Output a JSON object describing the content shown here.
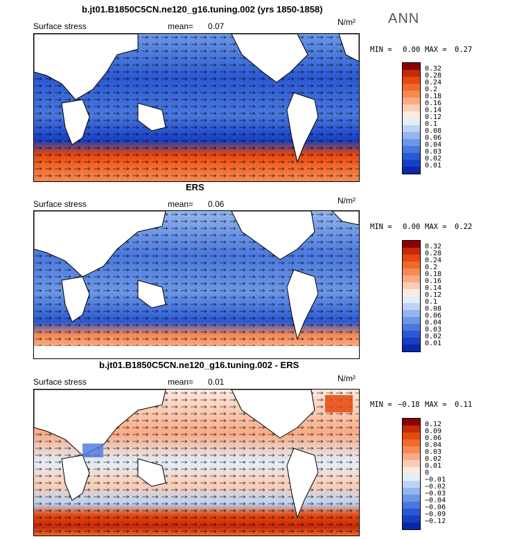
{
  "season": "ANN",
  "units": "N/m²",
  "panels": [
    {
      "title": "b.jt01.B1850C5CN.ne120_g16.tuning.002 (yrs 1850-1858)",
      "variable": "Surface stress",
      "mean_label": "mean=",
      "mean_value": "0.07",
      "min_label": "MIN =",
      "min_value": "0.00",
      "max_label": "MAX =",
      "max_value": "0.27",
      "colorbar_ticks": [
        "0.32",
        "0.28",
        "0.24",
        "0.2",
        "0.18",
        "0.16",
        "0.14",
        "0.12",
        "0.1",
        "0.08",
        "0.06",
        "0.04",
        "0.03",
        "0.02",
        "0.01"
      ],
      "colorbar_colors": [
        "#8b0000",
        "#c42a0a",
        "#e5490f",
        "#f2692b",
        "#f58a56",
        "#f8ab85",
        "#fbcdb5",
        "#fdebe0",
        "#e3eefb",
        "#bcd3f4",
        "#94b5ee",
        "#6d97e6",
        "#4a78dd",
        "#2a59d2",
        "#163fc4",
        "#0a28a8"
      ]
    },
    {
      "title": "ERS",
      "variable": "Surface stress",
      "mean_label": "mean=",
      "mean_value": "0.06",
      "min_label": "MIN =",
      "min_value": "0.00",
      "max_label": "MAX =",
      "max_value": "0.22",
      "colorbar_ticks": [
        "0.32",
        "0.28",
        "0.24",
        "0.2",
        "0.18",
        "0.16",
        "0.14",
        "0.12",
        "0.1",
        "0.08",
        "0.06",
        "0.04",
        "0.03",
        "0.02",
        "0.01"
      ],
      "colorbar_colors": [
        "#8b0000",
        "#c42a0a",
        "#e5490f",
        "#f2692b",
        "#f58a56",
        "#f8ab85",
        "#fbcdb5",
        "#fdebe0",
        "#e3eefb",
        "#bcd3f4",
        "#94b5ee",
        "#6d97e6",
        "#4a78dd",
        "#2a59d2",
        "#163fc4",
        "#0a28a8"
      ]
    },
    {
      "title": "b.jt01.B1850C5CN.ne120_g16.tuning.002 - ERS",
      "variable": "Surface stress",
      "mean_label": "mean=",
      "mean_value": "0.01",
      "min_label": "MIN =",
      "min_value": "−0.18",
      "max_label": "MAX =",
      "max_value": "0.11",
      "colorbar_ticks": [
        "0.12",
        "0.09",
        "0.06",
        "0.04",
        "0.03",
        "0.02",
        "0.01",
        "0",
        "−0.01",
        "−0.02",
        "−0.03",
        "−0.04",
        "−0.06",
        "−0.09",
        "−0.12"
      ],
      "colorbar_colors": [
        "#8b0000",
        "#c42a0a",
        "#e5490f",
        "#f2692b",
        "#f58a56",
        "#f8ab85",
        "#fbcdb5",
        "#fdebe0",
        "#e3eefb",
        "#bcd3f4",
        "#94b5ee",
        "#6d97e6",
        "#4a78dd",
        "#2a59d2",
        "#163fc4",
        "#0a28a8"
      ]
    }
  ]
}
